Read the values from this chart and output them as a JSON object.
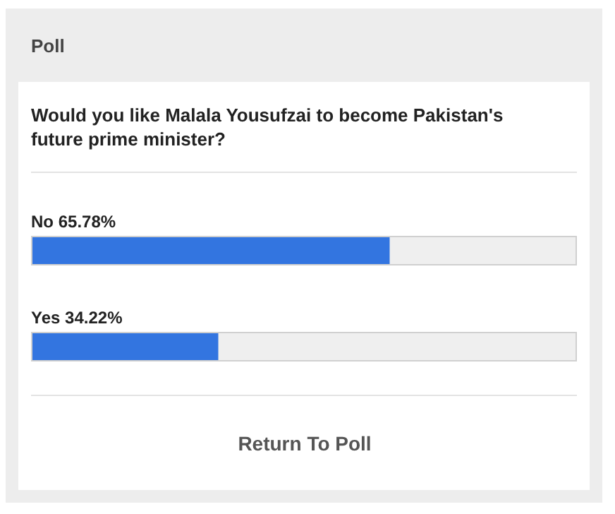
{
  "chart_data": {
    "type": "bar",
    "orientation": "horizontal",
    "title": "Poll",
    "subtitle": "Would you like Malala Yousufzai to become Pakistan's future prime minister?",
    "categories": [
      "No",
      "Yes"
    ],
    "values": [
      65.78,
      34.22
    ],
    "value_labels": [
      "65.78%",
      "34.22%"
    ],
    "color": "#3375e0",
    "annotations": [
      "Return To Poll"
    ]
  }
}
